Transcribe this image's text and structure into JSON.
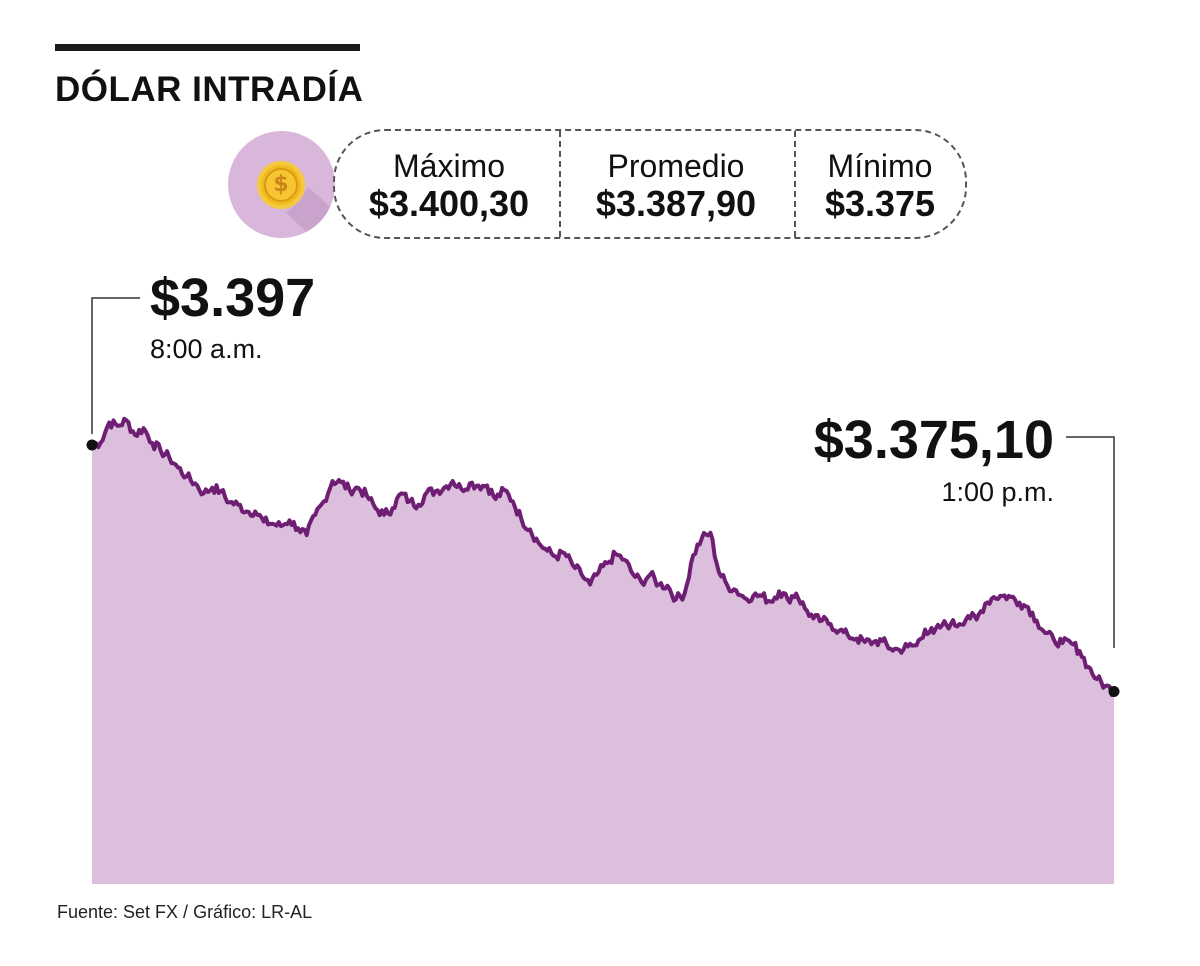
{
  "header": {
    "title": "DÓLAR INTRADÍA"
  },
  "stats": {
    "icon": "dollar-coin-icon",
    "max_label": "Máximo",
    "max_value": "$3.400,30",
    "avg_label": "Promedio",
    "avg_value": "$3.387,90",
    "min_label": "Mínimo",
    "min_value": "$3.375"
  },
  "annotations": {
    "start_value": "$3.397",
    "start_time": "8:00 a.m.",
    "end_value": "$3.375,10",
    "end_time": "1:00 p.m."
  },
  "footer": {
    "source": "Fuente: Set FX / Gráfico: LR-AL"
  },
  "colors": {
    "fill": "#dcbfdd",
    "line": "#6e1f73",
    "circle": "#d9b7da",
    "coin": "#f0b91c"
  },
  "chart_data": {
    "type": "area",
    "title": "DÓLAR INTRADÍA",
    "xlabel": "",
    "ylabel": "",
    "x_start": "8:00 a.m.",
    "x_end": "1:00 p.m.",
    "ylim": [
      3358,
      3401
    ],
    "grid": false,
    "series": [
      {
        "values": [
          3397.0,
          3397.2,
          3399.0,
          3398.7,
          3399.2,
          3397.9,
          3398.5,
          3397.2,
          3396.5,
          3395.9,
          3395.0,
          3394.2,
          3393.6,
          3392.7,
          3393.2,
          3392.9,
          3391.9,
          3391.7,
          3391.1,
          3391.1,
          3390.2,
          3390.0,
          3389.8,
          3390.3,
          3389.6,
          3389.0,
          3390.8,
          3392.0,
          3393.8,
          3393.7,
          3393.0,
          3393.2,
          3392.5,
          3391.4,
          3390.8,
          3391.4,
          3392.7,
          3392.0,
          3391.7,
          3392.8,
          3392.9,
          3393.2,
          3393.8,
          3393.1,
          3393.6,
          3393.4,
          3393.4,
          3392.2,
          3393.0,
          3392.0,
          3390.4,
          3389.5,
          3388.3,
          3387.6,
          3387.1,
          3387.4,
          3386.3,
          3385.5,
          3384.6,
          3385.7,
          3386.5,
          3387.3,
          3386.8,
          3385.5,
          3384.8,
          3385.5,
          3384.6,
          3384.5,
          3383.3,
          3383.8,
          3387.2,
          3388.7,
          3389.2,
          3385.7,
          3384.5,
          3384.1,
          3383.4,
          3383.6,
          3383.6,
          3383.1,
          3384.0,
          3383.3,
          3383.8,
          3382.5,
          3381.6,
          3381.4,
          3381.1,
          3380.5,
          3380.1,
          3379.8,
          3379.5,
          3379.5,
          3379.6,
          3378.9,
          3378.8,
          3379.1,
          3379.2,
          3380.6,
          3380.3,
          3381.0,
          3381.1,
          3381.1,
          3381.8,
          3381.5,
          3382.9,
          3383.5,
          3383.6,
          3383.5,
          3383.0,
          3382.6,
          3381.4,
          3380.3,
          3379.7,
          3379.4,
          3379.4,
          3378.7,
          3377.3,
          3376.2,
          3375.6,
          3375.1
        ]
      }
    ]
  }
}
